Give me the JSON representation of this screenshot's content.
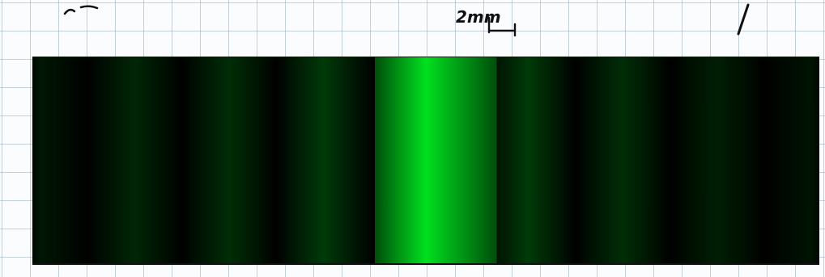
{
  "paper": {
    "style": "graph-paper",
    "line_color": "#96aabe",
    "background_color": "#fbfcfe"
  },
  "annotation": {
    "label": "2mm"
  },
  "interference_pattern": {
    "light_color": "#00e01e",
    "background_color": "#000000",
    "central_band_intensity": 1.0,
    "band_count": 9
  }
}
